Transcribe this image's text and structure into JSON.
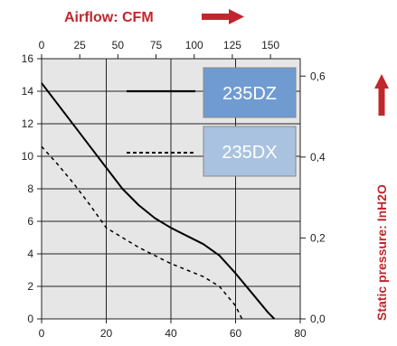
{
  "chart_data": {
    "type": "line",
    "top_axis_label": "Airflow: CFM",
    "right_axis_label": "Static pressure: InH2O",
    "x_bottom": {
      "range": [
        0,
        80
      ],
      "ticks": [
        "0",
        "20",
        "40",
        "60",
        "80"
      ]
    },
    "x_top": {
      "range": [
        0,
        169.5
      ],
      "ticks": [
        "0",
        "25",
        "50",
        "75",
        "100",
        "125",
        "150"
      ]
    },
    "y_left": {
      "range": [
        0,
        16
      ],
      "ticks": [
        "0",
        "2",
        "4",
        "6",
        "8",
        "10",
        "12",
        "14",
        "16"
      ]
    },
    "y_right": {
      "range": [
        0,
        0.643
      ],
      "ticks": [
        "0,0",
        "0,2",
        "0,4",
        "0,6"
      ]
    },
    "grid": true,
    "series": [
      {
        "name": "235DZ",
        "style": "solid",
        "color": "#000000",
        "legend_color": "#6f9bd1",
        "x": [
          0,
          5,
          10,
          15,
          20,
          25,
          30,
          35,
          40,
          45,
          50,
          55,
          60,
          65,
          70,
          72
        ],
        "y": [
          14.5,
          13.2,
          11.9,
          10.6,
          9.3,
          8.0,
          7.0,
          6.2,
          5.6,
          5.1,
          4.6,
          3.9,
          2.8,
          1.6,
          0.4,
          0
        ]
      },
      {
        "name": "235DX",
        "style": "dashed",
        "color": "#000000",
        "legend_color": "#a9c2e0",
        "x": [
          0,
          5,
          10,
          15,
          20,
          25,
          30,
          35,
          40,
          45,
          50,
          55,
          60,
          62
        ],
        "y": [
          10.6,
          9.5,
          8.3,
          7.0,
          5.6,
          5.0,
          4.4,
          3.9,
          3.4,
          3.0,
          2.6,
          2.0,
          0.8,
          0
        ]
      }
    ],
    "legend_position": "top-right",
    "colors": {
      "titles": "#c0272d",
      "plot_background": "#e6e6e6",
      "grid": "#222222"
    }
  }
}
